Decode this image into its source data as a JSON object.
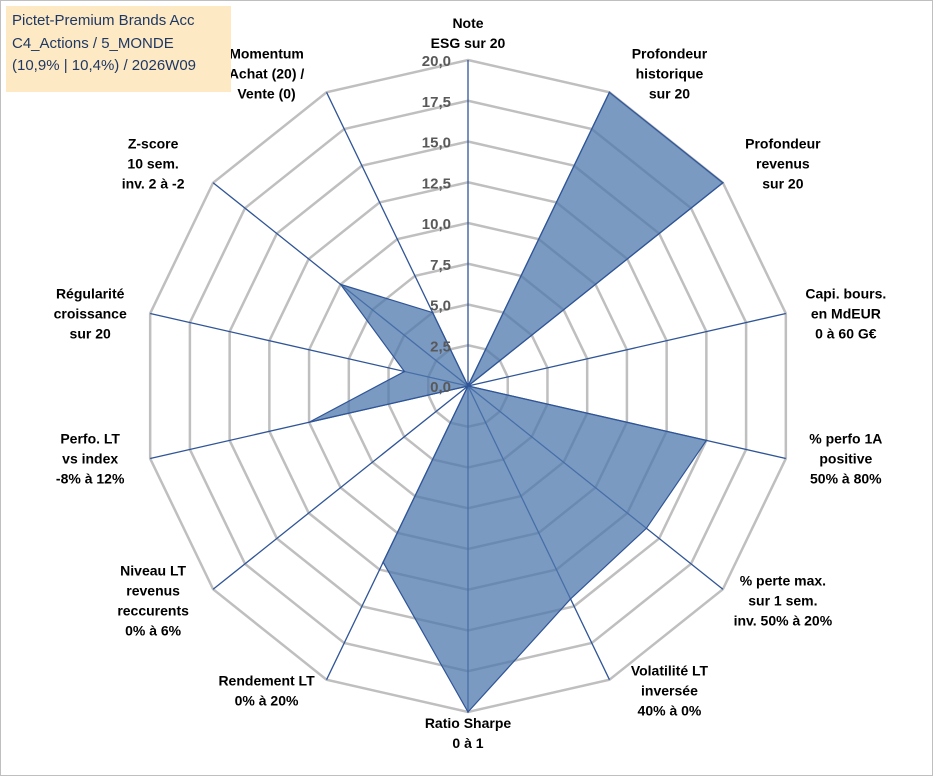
{
  "title_box": {
    "lines": [
      "Pictet-Premium Brands Acc",
      "C4_Actions / 5_MONDE",
      "(10,9% | 10,4%) / 2026W09"
    ]
  },
  "colors": {
    "grid": "#bfbfbf",
    "spoke": "#2f5597",
    "area_fill": "#4f78ad",
    "area_stroke": "#2f5597",
    "title_bg": "#fde9c4"
  },
  "chart_data": {
    "type": "radar",
    "rmin": 0,
    "rmax": 20,
    "tick_values": [
      0,
      2.5,
      5,
      7.5,
      10,
      12.5,
      15,
      17.5,
      20
    ],
    "tick_labels": [
      "0,0",
      "2,5",
      "5,0",
      "7,5",
      "10,0",
      "12,5",
      "15,0",
      "17,5",
      "20,0"
    ],
    "axes": [
      {
        "label": [
          "Note",
          "ESG sur 20"
        ],
        "value": 0
      },
      {
        "label": [
          "Profondeur",
          "historique",
          "sur 20"
        ],
        "value": 20
      },
      {
        "label": [
          "Profondeur",
          "revenus",
          "sur 20"
        ],
        "value": 20
      },
      {
        "label": [
          "Capi. bours.",
          "en MdEUR",
          "0 à 60 G€"
        ],
        "value": 0
      },
      {
        "label": [
          "% perfo 1A",
          "positive",
          "50% à 80%"
        ],
        "value": 15
      },
      {
        "label": [
          "% perte max.",
          "sur 1 sem.",
          "inv. 50% à 20%"
        ],
        "value": 14
      },
      {
        "label": [
          "Volatilité LT",
          "inversée",
          "40% à 0%"
        ],
        "value": 14.5
      },
      {
        "label": [
          "Ratio Sharpe",
          "0 à 1"
        ],
        "value": 20
      },
      {
        "label": [
          "Rendement LT",
          "0% à 20%"
        ],
        "value": 12
      },
      {
        "label": [
          "Niveau LT",
          "revenus",
          "reccurents",
          "0% à 6%"
        ],
        "value": 0
      },
      {
        "label": [
          "Perfo. LT",
          "vs index",
          "-8% à 12%"
        ],
        "value": 10
      },
      {
        "label": [
          "Régularité",
          "croissance",
          "sur 20"
        ],
        "value": 4
      },
      {
        "label": [
          "Z-score",
          "10 sem.",
          "inv. 2 à -2"
        ],
        "value": 10
      },
      {
        "label": [
          "Momentum",
          "Achat (20) /",
          "Vente (0)"
        ],
        "value": 5
      }
    ]
  }
}
